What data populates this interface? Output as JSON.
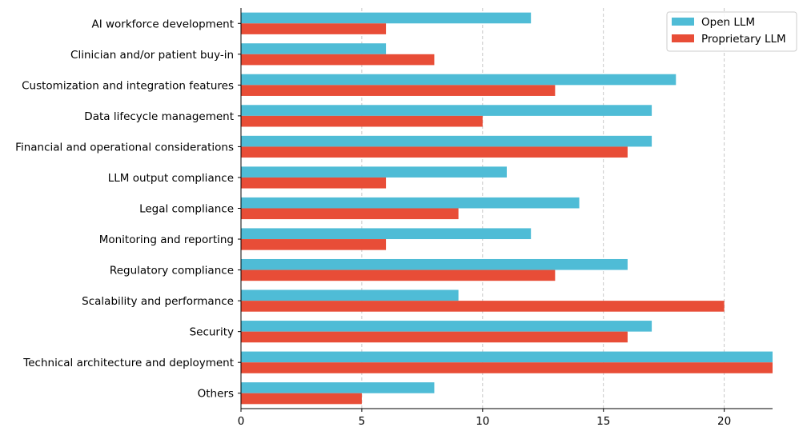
{
  "chart_data": {
    "type": "bar",
    "orientation": "horizontal",
    "categories": [
      "AI workforce development",
      "Clinician and/or patient buy-in",
      "Customization and integration features",
      "Data lifecycle management",
      "Financial and operational considerations",
      "LLM output compliance",
      "Legal compliance",
      "Monitoring and reporting",
      "Regulatory compliance",
      "Scalability and performance",
      "Security",
      "Technical architecture and deployment",
      "Others"
    ],
    "series": [
      {
        "name": "Open LLM",
        "color": "#4fbcd6",
        "values": [
          12,
          6,
          18,
          17,
          17,
          11,
          14,
          12,
          16,
          9,
          17,
          22,
          8
        ]
      },
      {
        "name": "Proprietary LLM",
        "color": "#e84d37",
        "values": [
          6,
          8,
          13,
          10,
          16,
          6,
          9,
          6,
          13,
          20,
          16,
          22,
          5
        ]
      }
    ],
    "xticks": [
      "0",
      "5",
      "10",
      "15",
      "20"
    ],
    "xlim": [
      0,
      22
    ],
    "grid": "x-dashed",
    "legend": "top-right",
    "title": "",
    "xlabel": "",
    "ylabel": ""
  }
}
